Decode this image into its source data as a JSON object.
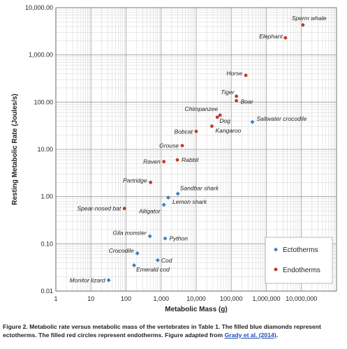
{
  "chart_data": {
    "type": "scatter",
    "xlabel": "Metabolic Mass (g)",
    "ylabel": "Resting Metabolic Rate (Joules/s)",
    "x_scale": "log",
    "y_scale": "log",
    "xlim": [
      1,
      100000000
    ],
    "ylim": [
      0.01,
      10000
    ],
    "x_tick_values": [
      1,
      10,
      100,
      1000,
      10000,
      100000,
      1000000,
      10000000
    ],
    "x_tick_labels": [
      "1",
      "10",
      "100",
      "1,000",
      "10,000",
      "100,000",
      "1,000,000",
      "10,000,000"
    ],
    "y_tick_values": [
      0.01,
      0.1,
      1,
      10,
      100,
      1000,
      10000
    ],
    "y_tick_labels": [
      "0.01",
      "0.10",
      "1.00",
      "10.00",
      "100.00",
      "1,000.00",
      "10,000.00"
    ],
    "grid": true,
    "legend_position": "bottom-right",
    "series": [
      {
        "name": "Ectotherms",
        "marker": "diamond",
        "color": "#3d7fc4",
        "points": [
          {
            "label": "Monitor lizard",
            "x": 32,
            "y": 0.017
          },
          {
            "label": "Emerald cod",
            "x": 170,
            "y": 0.035
          },
          {
            "label": "Crocodile",
            "x": 210,
            "y": 0.063
          },
          {
            "label": "Cod",
            "x": 800,
            "y": 0.045
          },
          {
            "label": "Gila monster",
            "x": 480,
            "y": 0.145
          },
          {
            "label": "Python",
            "x": 1300,
            "y": 0.13
          },
          {
            "label": "Alligator",
            "x": 1200,
            "y": 0.67
          },
          {
            "label": "Lemon shark",
            "x": 1600,
            "y": 0.95
          },
          {
            "label": "Sandbar shark",
            "x": 3000,
            "y": 1.15
          },
          {
            "label": "Saltwater crocodile",
            "x": 400000,
            "y": 38
          }
        ]
      },
      {
        "name": "Endotherms",
        "marker": "circle",
        "color": "#c0392b",
        "points": [
          {
            "label": "Spear-nosed bat",
            "x": 90,
            "y": 0.56
          },
          {
            "label": "Partridge",
            "x": 500,
            "y": 2.0
          },
          {
            "label": "Raven",
            "x": 1200,
            "y": 5.5
          },
          {
            "label": "Rabbit",
            "x": 2900,
            "y": 6.0
          },
          {
            "label": "Grouse",
            "x": 4000,
            "y": 12
          },
          {
            "label": "Bobcat",
            "x": 10000,
            "y": 24
          },
          {
            "label": "Kangaroo",
            "x": 28000,
            "y": 31
          },
          {
            "label": "Dog",
            "x": 40000,
            "y": 48
          },
          {
            "label": "Chimpanzee",
            "x": 48000,
            "y": 53
          },
          {
            "label": "Boar",
            "x": 140000,
            "y": 107
          },
          {
            "label": "Tiger",
            "x": 140000,
            "y": 133
          },
          {
            "label": "Horse",
            "x": 260000,
            "y": 370
          },
          {
            "label": "Elephant",
            "x": 3500000,
            "y": 2300
          },
          {
            "label": "Sperm whale",
            "x": 11000000,
            "y": 4300
          }
        ]
      }
    ]
  },
  "caption": {
    "text": "Figure 2. Metabolic rate versus metabolic mass of the vertebrates in Table 1. The filled blue diamonds represent ectotherms. The filled red circles represent endotherms. Figure adapted from ",
    "link": "Grady et al. (2014)",
    "end": "."
  }
}
